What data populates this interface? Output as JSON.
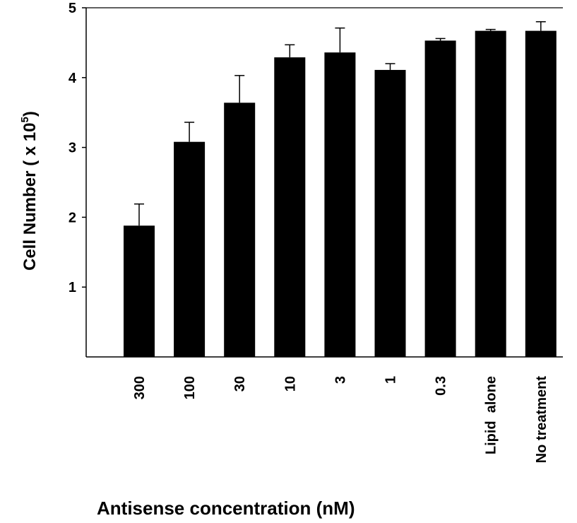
{
  "chart_data": {
    "type": "bar",
    "categories": [
      "300",
      "100",
      "30",
      "10",
      "3",
      "1",
      "0.3",
      "Lipid  alone",
      "No treatment"
    ],
    "values": [
      1.88,
      3.08,
      3.64,
      4.29,
      4.36,
      4.11,
      4.53,
      4.67,
      4.67
    ],
    "error_bars": [
      0.31,
      0.28,
      0.39,
      0.18,
      0.35,
      0.09,
      0.03,
      0.02,
      0.13
    ],
    "ylim": [
      0,
      5
    ],
    "yticks": [
      "1",
      "2",
      "3",
      "4",
      "5"
    ],
    "ylabel_main": "Cell Number ( x 10",
    "ylabel_sup": "5",
    "ylabel_end": ")",
    "xlabel": "Antisense concentration (nM)",
    "bar_color": "#000000",
    "grid": false
  }
}
